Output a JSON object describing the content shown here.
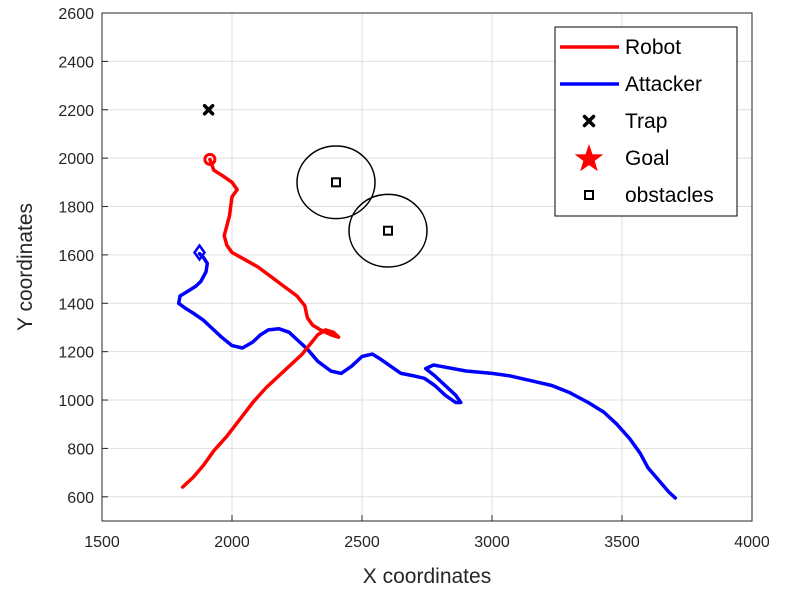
{
  "chart_data": {
    "type": "line",
    "title": "",
    "xlabel": "X coordinates",
    "ylabel": "Y coordinates",
    "xlim": [
      1500,
      4000
    ],
    "ylim": [
      500,
      2600
    ],
    "xticks": [
      1500,
      2000,
      2500,
      3000,
      3500,
      4000
    ],
    "yticks": [
      600,
      800,
      1000,
      1200,
      1400,
      1600,
      1800,
      2000,
      2200,
      2400,
      2600
    ],
    "grid": true,
    "legend_position": "top-right",
    "legend": {
      "robot": "Robot",
      "attacker": "Attacker",
      "trap": "Trap",
      "goal": "Goal",
      "obstacles": "obstacles"
    },
    "colors": {
      "robot": "#ff0000",
      "attacker": "#0000ff",
      "trap": "#000000",
      "goal": "#ff0000",
      "obstacles": "#000000"
    },
    "robot_path": [
      [
        1810,
        640
      ],
      [
        1850,
        680
      ],
      [
        1890,
        730
      ],
      [
        1930,
        790
      ],
      [
        1980,
        850
      ],
      [
        2030,
        920
      ],
      [
        2080,
        990
      ],
      [
        2130,
        1050
      ],
      [
        2180,
        1100
      ],
      [
        2230,
        1150
      ],
      [
        2270,
        1190
      ],
      [
        2300,
        1230
      ],
      [
        2330,
        1270
      ],
      [
        2360,
        1290
      ],
      [
        2390,
        1280
      ],
      [
        2410,
        1260
      ],
      [
        2380,
        1270
      ],
      [
        2340,
        1290
      ],
      [
        2310,
        1310
      ],
      [
        2290,
        1340
      ],
      [
        2280,
        1390
      ],
      [
        2250,
        1430
      ],
      [
        2200,
        1470
      ],
      [
        2150,
        1510
      ],
      [
        2100,
        1550
      ],
      [
        2050,
        1580
      ],
      [
        2000,
        1610
      ],
      [
        1980,
        1640
      ],
      [
        1970,
        1680
      ],
      [
        1980,
        1720
      ],
      [
        1990,
        1760
      ],
      [
        1995,
        1800
      ],
      [
        2000,
        1840
      ],
      [
        2020,
        1870
      ],
      [
        2000,
        1900
      ],
      [
        1960,
        1930
      ],
      [
        1930,
        1950
      ],
      [
        1915,
        1995
      ]
    ],
    "robot_start_marker": [
      1915,
      1995
    ],
    "attacker_path": [
      [
        3705,
        595
      ],
      [
        3680,
        620
      ],
      [
        3640,
        670
      ],
      [
        3600,
        720
      ],
      [
        3570,
        780
      ],
      [
        3530,
        840
      ],
      [
        3480,
        900
      ],
      [
        3430,
        950
      ],
      [
        3370,
        990
      ],
      [
        3300,
        1030
      ],
      [
        3230,
        1060
      ],
      [
        3150,
        1080
      ],
      [
        3070,
        1100
      ],
      [
        3000,
        1110
      ],
      [
        2900,
        1120
      ],
      [
        2800,
        1140
      ],
      [
        2775,
        1145
      ],
      [
        2745,
        1130
      ],
      [
        2780,
        1100
      ],
      [
        2820,
        1060
      ],
      [
        2860,
        1020
      ],
      [
        2880,
        990
      ],
      [
        2860,
        990
      ],
      [
        2820,
        1020
      ],
      [
        2780,
        1060
      ],
      [
        2740,
        1090
      ],
      [
        2700,
        1100
      ],
      [
        2650,
        1110
      ],
      [
        2610,
        1140
      ],
      [
        2570,
        1170
      ],
      [
        2540,
        1190
      ],
      [
        2500,
        1180
      ],
      [
        2460,
        1140
      ],
      [
        2420,
        1110
      ],
      [
        2380,
        1120
      ],
      [
        2330,
        1160
      ],
      [
        2290,
        1210
      ],
      [
        2250,
        1250
      ],
      [
        2220,
        1280
      ],
      [
        2180,
        1295
      ],
      [
        2140,
        1290
      ],
      [
        2110,
        1270
      ],
      [
        2080,
        1240
      ],
      [
        2040,
        1215
      ],
      [
        2000,
        1225
      ],
      [
        1960,
        1260
      ],
      [
        1920,
        1300
      ],
      [
        1890,
        1330
      ],
      [
        1850,
        1360
      ],
      [
        1820,
        1380
      ],
      [
        1795,
        1400
      ],
      [
        1800,
        1430
      ],
      [
        1830,
        1450
      ],
      [
        1860,
        1470
      ],
      [
        1880,
        1490
      ],
      [
        1900,
        1530
      ],
      [
        1905,
        1565
      ],
      [
        1890,
        1590
      ],
      [
        1875,
        1605
      ]
    ],
    "attacker_start_marker": [
      1875,
      1610
    ],
    "trap": [
      1910,
      2200
    ],
    "goal": [],
    "obstacles": [
      {
        "center": [
          2400,
          1900
        ],
        "radius": 150
      },
      {
        "center": [
          2600,
          1700
        ],
        "radius": 150
      }
    ]
  }
}
